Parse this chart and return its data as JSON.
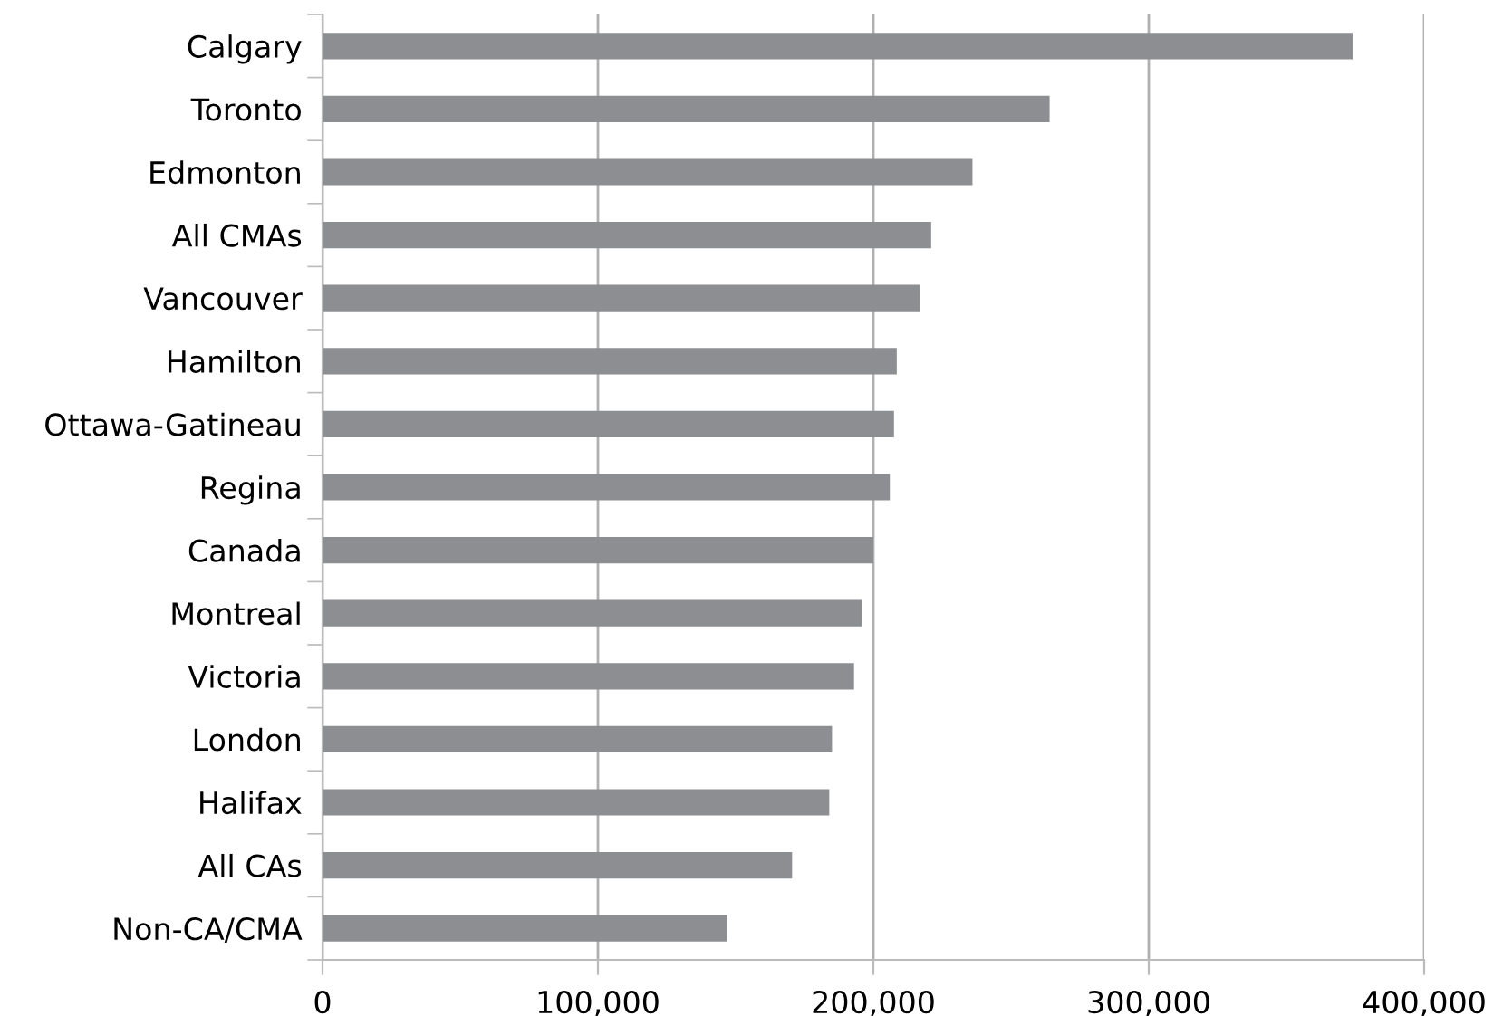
{
  "chart_data": {
    "type": "bar",
    "orientation": "horizontal",
    "categories": [
      "Calgary",
      "Toronto",
      "Edmonton",
      "All CMAs",
      "Vancouver",
      "Hamilton",
      "Ottawa-Gatineau",
      "Regina",
      "Canada",
      "Montreal",
      "Victoria",
      "London",
      "Halifax",
      "All CAs",
      "Non-CA/CMA"
    ],
    "values": [
      374000,
      264000,
      236000,
      221000,
      217000,
      208500,
      207500,
      206000,
      200000,
      196000,
      193000,
      185000,
      184000,
      170500,
      147000
    ],
    "color": "#8d8e91",
    "xlim": [
      0,
      400000
    ],
    "xticks": [
      {
        "value": 0,
        "label": "0"
      },
      {
        "value": 100000,
        "label": "100,000"
      },
      {
        "value": 200000,
        "label": "200,000"
      },
      {
        "value": 300000,
        "label": "300,000"
      },
      {
        "value": 400000,
        "label": "400,000"
      }
    ],
    "grid": "x"
  }
}
